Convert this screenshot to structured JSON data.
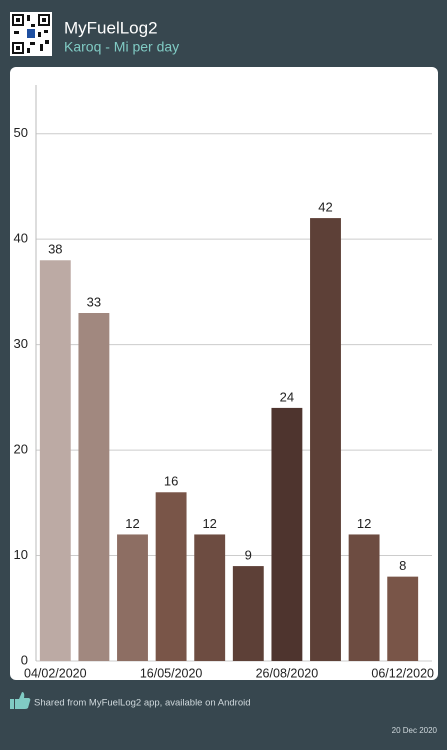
{
  "header": {
    "title": "MyFuelLog2",
    "subtitle": "Karoq - Mi per day"
  },
  "chart_data": {
    "type": "bar",
    "categories": [
      "04/02/2020",
      null,
      null,
      "16/05/2020",
      null,
      null,
      "26/08/2020",
      null,
      null,
      "06/12/2020"
    ],
    "values": [
      38,
      33,
      12,
      16,
      12,
      9,
      24,
      42,
      12,
      8
    ],
    "colors": [
      "#bcaaa4",
      "#a1887f",
      "#8d6e63",
      "#795548",
      "#6d4c41",
      "#5d4037",
      "#4e342e",
      "#5d4037",
      "#6d4c41",
      "#795548"
    ],
    "ylim": [
      0,
      55
    ],
    "yticks": [
      0,
      10,
      20,
      30,
      40,
      50
    ],
    "grid": true
  },
  "footer": {
    "share_text": "Shared from MyFuelLog2 app, available on Android",
    "date": "20 Dec 2020"
  }
}
